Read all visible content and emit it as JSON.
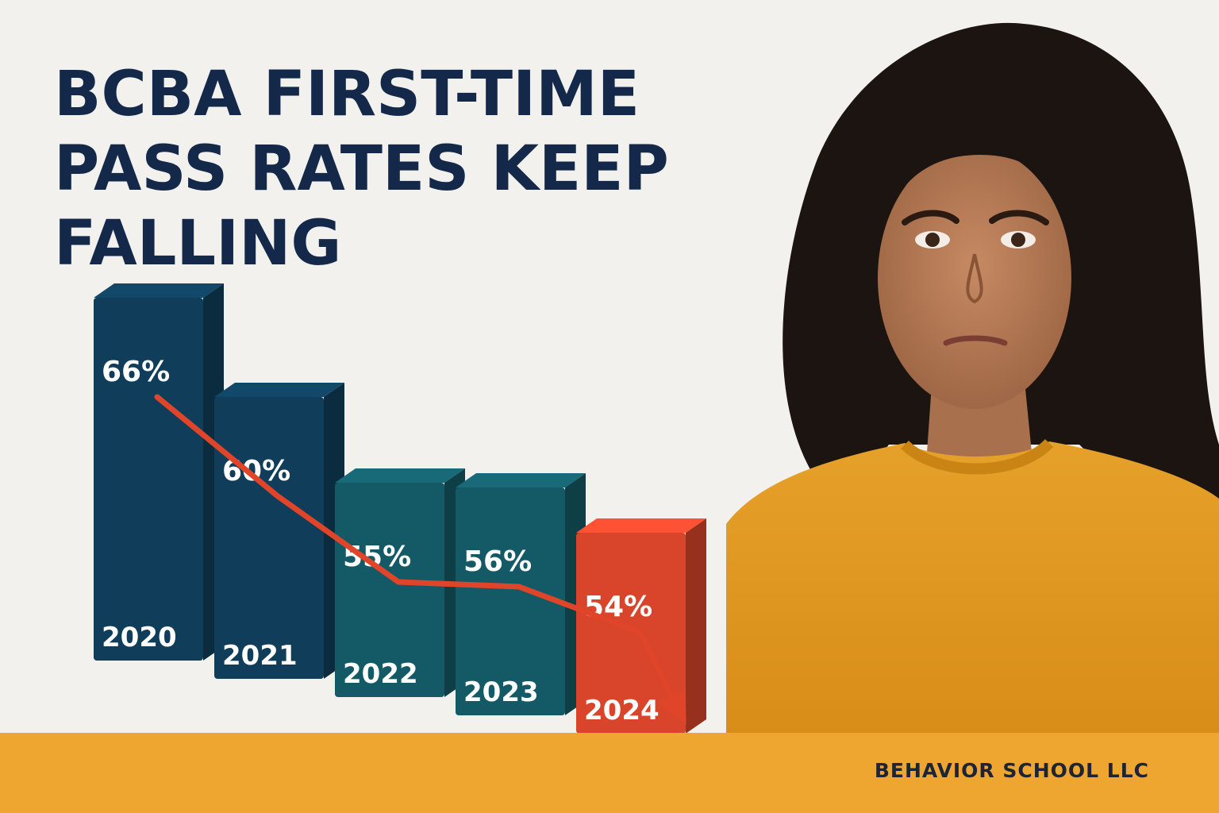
{
  "headline": {
    "line1": "BCBA FIRST-TIME",
    "line2": "PASS RATES KEEP",
    "line3": "FALLING"
  },
  "footer": {
    "brand": "BEHAVIOR SCHOOL LLC"
  },
  "portrait": {
    "subject": "woman with frowning expression in mustard sweater",
    "icon": "person-photo"
  },
  "colors": {
    "title": "#14294a",
    "bar_dark": "#0f3d5a",
    "bar_teal": "#145a66",
    "bar_highlight": "#d9452b",
    "trend_line": "#e0452a",
    "footer_band": "#efa630",
    "sweater": "#e09a1e"
  },
  "chart_data": {
    "type": "bar",
    "categories": [
      "2020",
      "2021",
      "2022",
      "2023",
      "2024"
    ],
    "values": [
      66,
      60,
      55,
      56,
      54
    ],
    "value_labels": [
      "66%",
      "60%",
      "55%",
      "56%",
      "54%"
    ],
    "highlight_index": 4,
    "trend_arrow": "down",
    "title": "",
    "xlabel": "",
    "ylabel": ""
  }
}
